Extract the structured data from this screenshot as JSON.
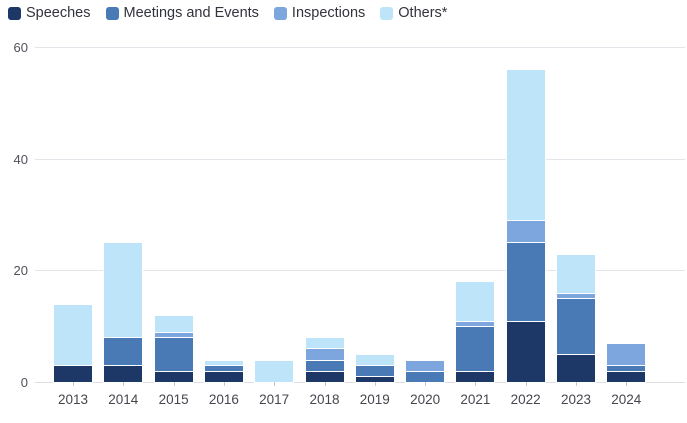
{
  "chart_data": {
    "type": "bar",
    "stacked": true,
    "title": "",
    "xlabel": "",
    "ylabel": "",
    "categories": [
      "2013",
      "2014",
      "2015",
      "2016",
      "2017",
      "2018",
      "2019",
      "2020",
      "2021",
      "2022",
      "2023",
      "2024"
    ],
    "series": [
      {
        "name": "Speeches",
        "color": "#1d3767",
        "values": [
          3,
          3,
          2,
          2,
          0,
          2,
          1,
          0,
          2,
          11,
          5,
          2
        ]
      },
      {
        "name": "Meetings and Events",
        "color": "#4a7ab5",
        "values": [
          0,
          5,
          6,
          1,
          0,
          2,
          2,
          2,
          8,
          14,
          10,
          1
        ]
      },
      {
        "name": "Inspections",
        "color": "#7da6de",
        "values": [
          0,
          0,
          1,
          0,
          0,
          2,
          0,
          2,
          1,
          4,
          1,
          4
        ]
      },
      {
        "name": "Others*",
        "color": "#bde4f9",
        "values": [
          11,
          17,
          3,
          1,
          4,
          2,
          2,
          0,
          7,
          27,
          7,
          0
        ]
      }
    ],
    "totals": [
      14,
      25,
      12,
      4,
      4,
      8,
      5,
      4,
      18,
      56,
      23,
      7
    ],
    "ylim": [
      0,
      60
    ],
    "yticks": [
      0,
      20,
      40,
      60
    ],
    "grid": true,
    "legend_position": "top-left",
    "colors": {
      "background": "#ffffff",
      "gridline": "#e4e5ea",
      "axis_text": "#50525b",
      "legend_text": "#32333c"
    }
  }
}
